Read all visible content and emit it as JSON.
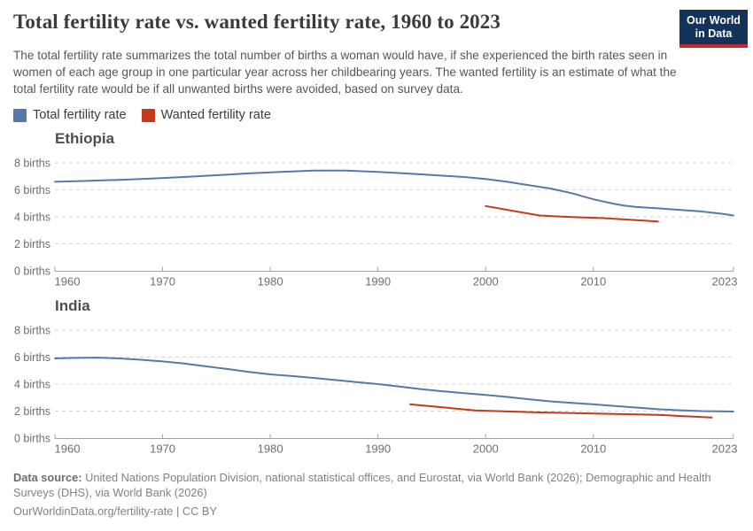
{
  "header": {
    "title": "Total fertility rate vs. wanted fertility rate, 1960 to 2023",
    "subtitle": "The total fertility rate summarizes the total number of births a woman would have, if she experienced the birth rates seen in women of each age group in one particular year across her childbearing years. The wanted fertility is an estimate of what the total fertility rate would be if all unwanted births were avoided, based on survey data.",
    "logo": {
      "line1": "Our World",
      "line2": "in Data",
      "bg_color": "#14335a",
      "bar_color": "#d0232a"
    }
  },
  "legend": {
    "items": [
      {
        "label": "Total fertility rate",
        "color": "#5878a8"
      },
      {
        "label": "Wanted fertility rate",
        "color": "#c43a1d"
      }
    ]
  },
  "colors": {
    "total_line": "#5878a8",
    "wanted_line": "#c43a1d",
    "grid": "#d6d6d6",
    "axis": "#a3a3a3",
    "tick_text": "#6e6e6e"
  },
  "chart_data": [
    {
      "type": "line",
      "title": "Ethiopia",
      "xlim": [
        1960,
        2023
      ],
      "ylim": [
        0,
        8
      ],
      "x_ticks": [
        1960,
        1970,
        1980,
        1990,
        2000,
        2010,
        2023
      ],
      "y_ticks": [
        0,
        2,
        4,
        6,
        8
      ],
      "y_unit": "births",
      "grid": "horizontal-dashed",
      "legend_position": "top",
      "series": [
        {
          "name": "Total fertility rate",
          "color": "#5878a8",
          "points": [
            [
              1960,
              6.6
            ],
            [
              1963,
              6.66
            ],
            [
              1966,
              6.74
            ],
            [
              1969,
              6.84
            ],
            [
              1972,
              6.95
            ],
            [
              1975,
              7.08
            ],
            [
              1978,
              7.22
            ],
            [
              1981,
              7.33
            ],
            [
              1984,
              7.43
            ],
            [
              1987,
              7.42
            ],
            [
              1990,
              7.33
            ],
            [
              1993,
              7.2
            ],
            [
              1996,
              7.05
            ],
            [
              1998,
              6.95
            ],
            [
              2000,
              6.8
            ],
            [
              2002,
              6.6
            ],
            [
              2004,
              6.35
            ],
            [
              2006,
              6.1
            ],
            [
              2008,
              5.75
            ],
            [
              2010,
              5.3
            ],
            [
              2012,
              4.95
            ],
            [
              2013,
              4.82
            ],
            [
              2014,
              4.73
            ],
            [
              2016,
              4.63
            ],
            [
              2018,
              4.52
            ],
            [
              2020,
              4.4
            ],
            [
              2022,
              4.22
            ],
            [
              2023,
              4.1
            ]
          ]
        },
        {
          "name": "Wanted fertility rate",
          "color": "#c43a1d",
          "points": [
            [
              2000,
              4.8
            ],
            [
              2005,
              4.1
            ],
            [
              2008,
              3.98
            ],
            [
              2011,
              3.9
            ],
            [
              2016,
              3.65
            ]
          ]
        }
      ]
    },
    {
      "type": "line",
      "title": "India",
      "xlim": [
        1960,
        2023
      ],
      "ylim": [
        0,
        8
      ],
      "x_ticks": [
        1960,
        1970,
        1980,
        1990,
        2000,
        2010,
        2023
      ],
      "y_ticks": [
        0,
        2,
        4,
        6,
        8
      ],
      "y_unit": "births",
      "grid": "horizontal-dashed",
      "legend_position": "top",
      "series": [
        {
          "name": "Total fertility rate",
          "color": "#5878a8",
          "points": [
            [
              1960,
              5.9
            ],
            [
              1962,
              5.94
            ],
            [
              1964,
              5.96
            ],
            [
              1966,
              5.9
            ],
            [
              1968,
              5.8
            ],
            [
              1970,
              5.68
            ],
            [
              1972,
              5.52
            ],
            [
              1974,
              5.32
            ],
            [
              1976,
              5.12
            ],
            [
              1978,
              4.9
            ],
            [
              1980,
              4.72
            ],
            [
              1982,
              4.6
            ],
            [
              1984,
              4.46
            ],
            [
              1986,
              4.3
            ],
            [
              1988,
              4.15
            ],
            [
              1990,
              4.0
            ],
            [
              1992,
              3.82
            ],
            [
              1994,
              3.62
            ],
            [
              1996,
              3.47
            ],
            [
              1998,
              3.33
            ],
            [
              2000,
              3.2
            ],
            [
              2002,
              3.05
            ],
            [
              2004,
              2.88
            ],
            [
              2006,
              2.72
            ],
            [
              2008,
              2.6
            ],
            [
              2010,
              2.5
            ],
            [
              2012,
              2.38
            ],
            [
              2014,
              2.26
            ],
            [
              2016,
              2.14
            ],
            [
              2018,
              2.06
            ],
            [
              2020,
              2.0
            ],
            [
              2023,
              1.97
            ]
          ]
        },
        {
          "name": "Wanted fertility rate",
          "color": "#c43a1d",
          "points": [
            [
              1993,
              2.5
            ],
            [
              1999,
              2.05
            ],
            [
              2005,
              1.9
            ],
            [
              2010,
              1.82
            ],
            [
              2016,
              1.72
            ],
            [
              2021,
              1.52
            ]
          ]
        }
      ]
    }
  ],
  "footer": {
    "datasource_label": "Data source:",
    "datasource_text": " United Nations Population Division, national statistical offices, and Eurostat, via World Bank (2026); Demographic and Health Surveys (DHS), via World Bank (2026)",
    "link": "OurWorldinData.org/fertility-rate",
    "separator": " | ",
    "license": "CC BY"
  }
}
